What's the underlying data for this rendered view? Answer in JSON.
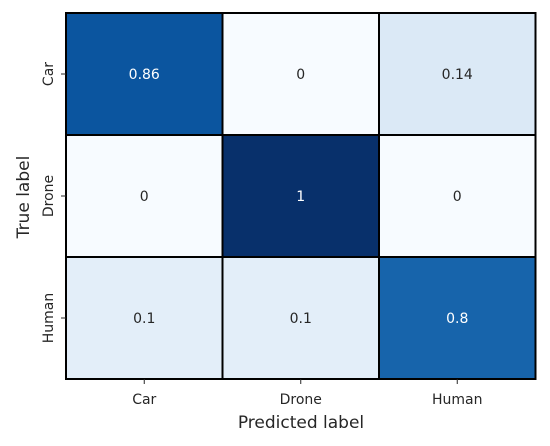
{
  "chart_data": {
    "type": "heatmap",
    "title": "",
    "xlabel": "Predicted label",
    "ylabel": "True label",
    "x_categories": [
      "Car",
      "Drone",
      "Human"
    ],
    "y_categories": [
      "Car",
      "Drone",
      "Human"
    ],
    "values": [
      [
        0.86,
        0,
        0.14
      ],
      [
        0,
        1,
        0
      ],
      [
        0.1,
        0.1,
        0.8
      ]
    ],
    "value_labels": [
      [
        "0.86",
        "0",
        "0.14"
      ],
      [
        "0",
        "1",
        "0"
      ],
      [
        "0.1",
        "0.1",
        "0.8"
      ]
    ],
    "colormap": "Blues",
    "vmin": 0,
    "vmax": 1,
    "colors": {
      "low": "#f7fbff",
      "high": "#08306b",
      "cell_border": "#000000",
      "text_light": "#ffffff",
      "text_dark": "#262626"
    }
  }
}
